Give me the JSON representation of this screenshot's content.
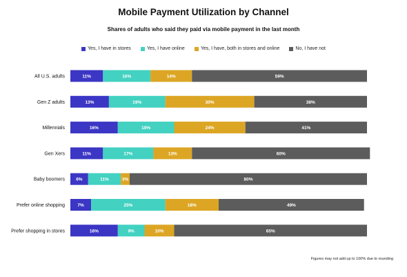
{
  "chart_data": {
    "type": "bar",
    "orientation": "horizontal",
    "stacked": true,
    "title": "Mobile Payment Utilization by Channel",
    "subtitle": "Shares of adults who said they paid via mobile payment in the last month",
    "categories": [
      "All U.S. adults",
      "Gen Z adults",
      "Millennials",
      "Gen Xers",
      "Baby boomers",
      "Prefer online shopping",
      "Prefer shopping in stores"
    ],
    "series": [
      {
        "name": "Yes, I have in stores",
        "color": "#3b36c4",
        "values": [
          11,
          13,
          16,
          11,
          6,
          7,
          16
        ]
      },
      {
        "name": "Yes, I have online",
        "color": "#43d1c1",
        "values": [
          16,
          19,
          19,
          17,
          11,
          25,
          9
        ]
      },
      {
        "name": "Yes, I have, both in stores and online",
        "color": "#dca624",
        "values": [
          14,
          30,
          24,
          13,
          3,
          18,
          10
        ]
      },
      {
        "name": "No, I have not",
        "color": "#5c5c5c",
        "values": [
          59,
          38,
          41,
          60,
          80,
          49,
          65
        ]
      }
    ],
    "value_suffix": "%",
    "legend_position": "top",
    "grid": false,
    "footnote": "Figures may not add up to 100% due to rounding"
  }
}
